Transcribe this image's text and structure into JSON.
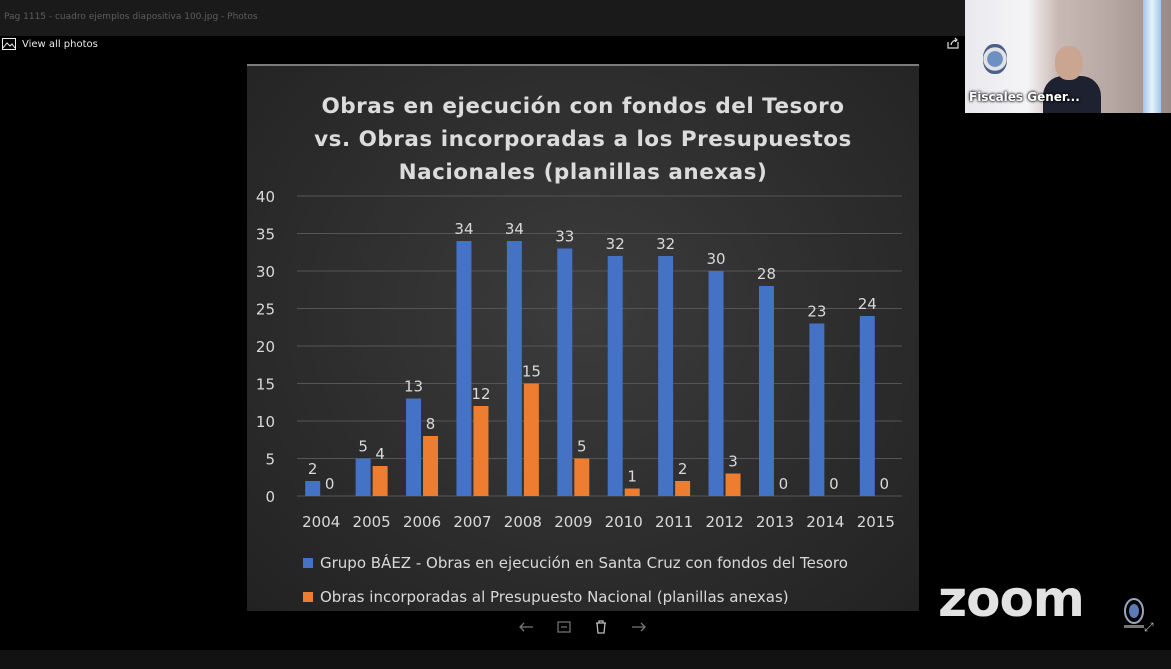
{
  "window": {
    "title": "Pag 1115 - cuadro ejemplos diapositiva 100.jpg - Photos"
  },
  "photos_app": {
    "view_all_label": "View all photos",
    "image_icon": "image-icon",
    "share_icon": "share-icon",
    "tools": [
      "back-arrow-icon",
      "slideshow-icon",
      "delete-icon",
      "forward-arrow-icon"
    ]
  },
  "video": {
    "participant_name": "Fiscales Gener...",
    "zoom_watermark": "zoom"
  },
  "colors": {
    "series1": "#4472c4",
    "series2": "#ed7d31",
    "text": "#d9d9d9",
    "grid": "#555555"
  },
  "chart_data": {
    "type": "bar",
    "title": "Obras en ejecución con fondos del Tesoro vs. Obras incorporadas a los Presupuestos Nacionales (planillas anexas)",
    "title_lines": [
      "Obras en ejecución con fondos del Tesoro",
      "vs. Obras incorporadas a los Presupuestos",
      "Nacionales (planillas anexas)"
    ],
    "categories": [
      "2004",
      "2005",
      "2006",
      "2007",
      "2008",
      "2009",
      "2010",
      "2011",
      "2012",
      "2013",
      "2014",
      "2015"
    ],
    "series": [
      {
        "name": "Grupo BÁEZ - Obras en ejecución en Santa Cruz con fondos del Tesoro",
        "values": [
          2,
          5,
          13,
          34,
          34,
          33,
          32,
          32,
          30,
          28,
          23,
          24
        ]
      },
      {
        "name": "Obras incorporadas al Presupuesto Nacional (planillas anexas)",
        "values": [
          0,
          4,
          8,
          12,
          15,
          5,
          1,
          2,
          3,
          0,
          0,
          0
        ]
      }
    ],
    "ylim": [
      0,
      40
    ],
    "yticks": [
      0,
      5,
      10,
      15,
      20,
      25,
      30,
      35,
      40
    ],
    "grid": true,
    "legend": "bottom",
    "xlabel": "",
    "ylabel": ""
  }
}
